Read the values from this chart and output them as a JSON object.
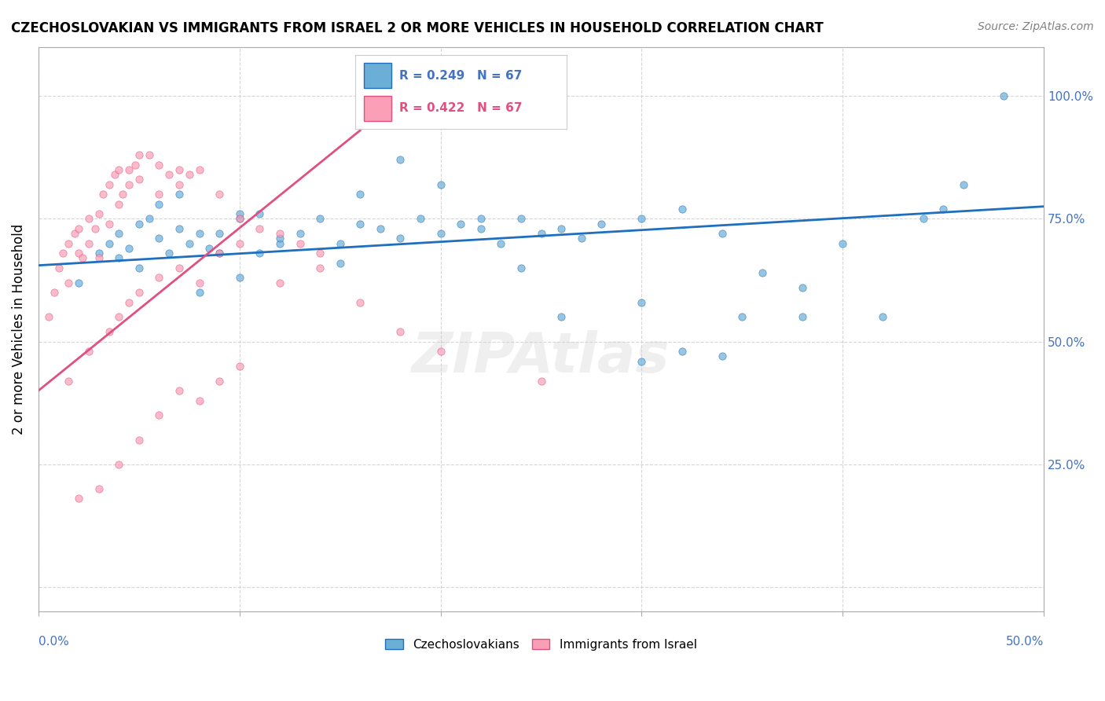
{
  "title": "CZECHOSLOVAKIAN VS IMMIGRANTS FROM ISRAEL 2 OR MORE VEHICLES IN HOUSEHOLD CORRELATION CHART",
  "source": "Source: ZipAtlas.com",
  "ylabel": "2 or more Vehicles in Household",
  "yticks": [
    0.0,
    0.25,
    0.5,
    0.75,
    1.0
  ],
  "ytick_labels": [
    "",
    "25.0%",
    "50.0%",
    "75.0%",
    "100.0%"
  ],
  "xlim": [
    0.0,
    0.5
  ],
  "ylim": [
    -0.05,
    1.1
  ],
  "legend_blue_r": "R = 0.249",
  "legend_blue_n": "N = 67",
  "legend_pink_r": "R = 0.422",
  "legend_pink_n": "N = 67",
  "blue_color": "#6baed6",
  "pink_color": "#fa9fb5",
  "trendline_blue": "#1f6fbf",
  "trendline_pink": "#e05080",
  "blue_scatter_x": [
    0.02,
    0.03,
    0.035,
    0.04,
    0.04,
    0.045,
    0.05,
    0.05,
    0.055,
    0.06,
    0.065,
    0.07,
    0.075,
    0.08,
    0.085,
    0.09,
    0.1,
    0.1,
    0.11,
    0.12,
    0.13,
    0.14,
    0.15,
    0.16,
    0.17,
    0.18,
    0.19,
    0.2,
    0.21,
    0.22,
    0.23,
    0.24,
    0.25,
    0.26,
    0.27,
    0.28,
    0.3,
    0.32,
    0.34,
    0.36,
    0.38,
    0.42,
    0.45,
    0.48,
    0.06,
    0.07,
    0.08,
    0.09,
    0.1,
    0.11,
    0.12,
    0.15,
    0.16,
    0.18,
    0.2,
    0.22,
    0.24,
    0.26,
    0.3,
    0.34,
    0.38,
    0.44,
    0.46,
    0.3,
    0.32,
    0.35,
    0.4
  ],
  "blue_scatter_y": [
    0.62,
    0.68,
    0.7,
    0.72,
    0.67,
    0.69,
    0.74,
    0.65,
    0.75,
    0.71,
    0.68,
    0.73,
    0.7,
    0.72,
    0.69,
    0.68,
    0.75,
    0.76,
    0.76,
    0.7,
    0.72,
    0.75,
    0.66,
    0.74,
    0.73,
    0.71,
    0.75,
    0.72,
    0.74,
    0.73,
    0.7,
    0.75,
    0.72,
    0.73,
    0.71,
    0.74,
    0.75,
    0.77,
    0.72,
    0.64,
    0.61,
    0.55,
    0.77,
    1.0,
    0.78,
    0.8,
    0.6,
    0.72,
    0.63,
    0.68,
    0.71,
    0.7,
    0.8,
    0.87,
    0.82,
    0.75,
    0.65,
    0.55,
    0.58,
    0.47,
    0.55,
    0.75,
    0.82,
    0.46,
    0.48,
    0.55,
    0.7
  ],
  "pink_scatter_x": [
    0.005,
    0.008,
    0.01,
    0.012,
    0.015,
    0.015,
    0.018,
    0.02,
    0.02,
    0.022,
    0.025,
    0.025,
    0.028,
    0.03,
    0.03,
    0.032,
    0.035,
    0.035,
    0.038,
    0.04,
    0.04,
    0.042,
    0.045,
    0.045,
    0.048,
    0.05,
    0.05,
    0.055,
    0.06,
    0.06,
    0.065,
    0.07,
    0.07,
    0.075,
    0.08,
    0.09,
    0.1,
    0.11,
    0.12,
    0.13,
    0.14,
    0.015,
    0.025,
    0.035,
    0.04,
    0.045,
    0.05,
    0.06,
    0.07,
    0.08,
    0.09,
    0.1,
    0.12,
    0.14,
    0.16,
    0.18,
    0.2,
    0.25,
    0.02,
    0.03,
    0.04,
    0.05,
    0.06,
    0.07,
    0.08,
    0.09,
    0.1
  ],
  "pink_scatter_y": [
    0.55,
    0.6,
    0.65,
    0.68,
    0.7,
    0.62,
    0.72,
    0.68,
    0.73,
    0.67,
    0.75,
    0.7,
    0.73,
    0.76,
    0.67,
    0.8,
    0.82,
    0.74,
    0.84,
    0.85,
    0.78,
    0.8,
    0.85,
    0.82,
    0.86,
    0.88,
    0.83,
    0.88,
    0.8,
    0.86,
    0.84,
    0.85,
    0.82,
    0.84,
    0.85,
    0.8,
    0.75,
    0.73,
    0.72,
    0.7,
    0.68,
    0.42,
    0.48,
    0.52,
    0.55,
    0.58,
    0.6,
    0.63,
    0.65,
    0.62,
    0.68,
    0.7,
    0.62,
    0.65,
    0.58,
    0.52,
    0.48,
    0.42,
    0.18,
    0.2,
    0.25,
    0.3,
    0.35,
    0.4,
    0.38,
    0.42,
    0.45
  ],
  "blue_trend_x": [
    0.0,
    0.5
  ],
  "blue_trend_y": [
    0.655,
    0.775
  ],
  "pink_trend_x": [
    0.0,
    0.16
  ],
  "pink_trend_y": [
    0.4,
    0.93
  ]
}
